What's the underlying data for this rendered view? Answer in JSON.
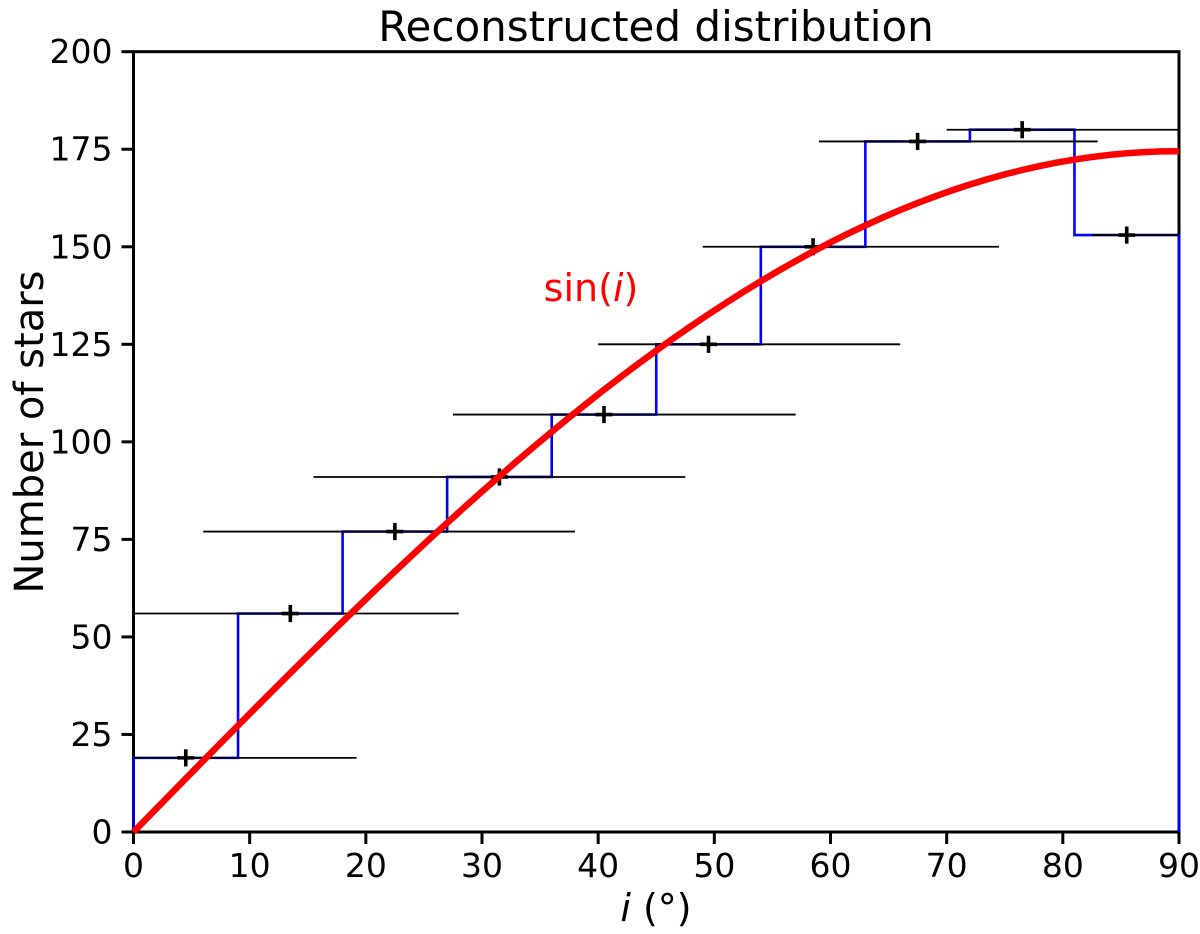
{
  "title": "Reconstructed distribution",
  "axes": {
    "x_label_var": "i",
    "x_label_rest": " (°)",
    "y_label": "Number of stars",
    "x_ticks": [
      0,
      10,
      20,
      30,
      40,
      50,
      60,
      70,
      80,
      90
    ],
    "y_ticks": [
      0,
      25,
      50,
      75,
      100,
      125,
      150,
      175,
      200
    ],
    "xlim": [
      0,
      90
    ],
    "ylim": [
      0,
      200
    ]
  },
  "annotation": {
    "pre": "sin(",
    "arg": "i",
    "post": ")",
    "color": "#ff0000"
  },
  "chart_data": {
    "type": "bar",
    "subtype": "step-histogram with x/y error bars and model curve",
    "title": "Reconstructed distribution",
    "xlabel": "i (deg)",
    "ylabel": "Number of stars",
    "xlim": [
      0,
      90
    ],
    "ylim": [
      0,
      200
    ],
    "grid": false,
    "histogram_color": "#0000ff",
    "error_color": "#000000",
    "bin_edges": [
      0,
      9,
      18,
      27,
      36,
      45,
      54,
      63,
      72,
      81,
      90
    ],
    "counts": [
      19,
      56,
      77,
      91,
      107,
      125,
      150,
      177,
      180,
      153
    ],
    "bins": [
      {
        "x_lo": 0,
        "x_hi": 9,
        "count": 19,
        "err_center": 4.5,
        "err_x_lo": 0,
        "err_x_hi": 19.2,
        "err_y": 2.2
      },
      {
        "x_lo": 9,
        "x_hi": 18,
        "count": 56,
        "err_center": 13.5,
        "err_x_lo": 0,
        "err_x_hi": 28,
        "err_y": 2.2
      },
      {
        "x_lo": 18,
        "x_hi": 27,
        "count": 77,
        "err_center": 22.5,
        "err_x_lo": 6,
        "err_x_hi": 38,
        "err_y": 2.2
      },
      {
        "x_lo": 27,
        "x_hi": 36,
        "count": 91,
        "err_center": 31.5,
        "err_x_lo": 15.5,
        "err_x_hi": 47.5,
        "err_y": 2.2
      },
      {
        "x_lo": 36,
        "x_hi": 45,
        "count": 107,
        "err_center": 40.5,
        "err_x_lo": 27.5,
        "err_x_hi": 57,
        "err_y": 2.2
      },
      {
        "x_lo": 45,
        "x_hi": 54,
        "count": 125,
        "err_center": 49.5,
        "err_x_lo": 40,
        "err_x_hi": 66,
        "err_y": 2.2
      },
      {
        "x_lo": 54,
        "x_hi": 63,
        "count": 150,
        "err_center": 58.5,
        "err_x_lo": 49,
        "err_x_hi": 74.5,
        "err_y": 2.2
      },
      {
        "x_lo": 63,
        "x_hi": 72,
        "count": 177,
        "err_center": 67.5,
        "err_x_lo": 59,
        "err_x_hi": 83,
        "err_y": 2.2
      },
      {
        "x_lo": 72,
        "x_hi": 81,
        "count": 180,
        "err_center": 76.5,
        "err_x_lo": 70,
        "err_x_hi": 90,
        "err_y": 2.2
      },
      {
        "x_lo": 81,
        "x_hi": 90,
        "count": 153,
        "err_center": 85.5,
        "err_x_lo": 82.5,
        "err_x_hi": 90,
        "err_y": 2.2
      }
    ],
    "curve": {
      "label": "sin(i)",
      "formula": "N(i) = A * sin(i)",
      "amplitude": 174.5,
      "color": "#ff0000"
    }
  }
}
